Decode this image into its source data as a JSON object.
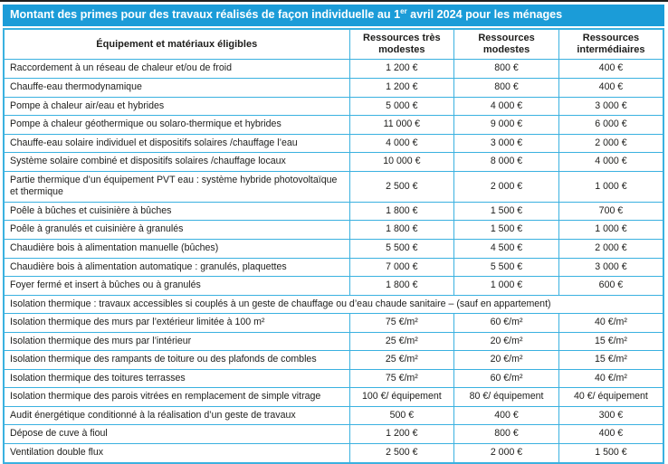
{
  "colors": {
    "title_bar_bg": "#1b9cd8",
    "table_border": "#3ab1e0",
    "text": "#1d1d1b",
    "top_edge_line": "#1f1f1f"
  },
  "title": {
    "prefix": "Montant des primes pour des travaux réalisés de façon individuelle au 1",
    "superscript": "er",
    "suffix": " avril 2024 pour les ménages"
  },
  "table": {
    "columns": [
      "Équipement et matériaux éligibles",
      "Ressources très modestes",
      "Ressources modestes",
      "Ressources intermédiaires"
    ],
    "rows": [
      {
        "label": "Raccordement à un réseau de chaleur et/ou de froid",
        "values": [
          "1 200 €",
          "800 €",
          "400 €"
        ]
      },
      {
        "label": "Chauffe-eau thermodynamique",
        "values": [
          "1 200 €",
          "800 €",
          "400 €"
        ]
      },
      {
        "label": "Pompe à chaleur air/eau et hybrides",
        "values": [
          "5 000 €",
          "4 000 €",
          "3 000 €"
        ]
      },
      {
        "label": "Pompe à chaleur géothermique ou solaro-thermique et hybrides",
        "values": [
          "11 000 €",
          "9 000 €",
          "6 000 €"
        ]
      },
      {
        "label": "Chauffe-eau solaire individuel et dispositifs solaires /chauffage l’eau",
        "values": [
          "4 000 €",
          "3 000 €",
          "2 000 €"
        ]
      },
      {
        "label": "Système solaire combiné et dispositifs solaires /chauffage locaux",
        "values": [
          "10 000 €",
          "8 000 €",
          "4 000 €"
        ]
      },
      {
        "label": "Partie thermique d’un équipement PVT eau : système hybride photovoltaïque et thermique",
        "values": [
          "2 500 €",
          "2 000 €",
          "1 000 €"
        ]
      },
      {
        "label": "Poêle à bûches et cuisinière à bûches",
        "values": [
          "1 800 €",
          "1 500 €",
          "700 €"
        ]
      },
      {
        "label": "Poêle à granulés et cuisinière à granulés",
        "values": [
          "1 800 €",
          "1 500 €",
          "1 000 €"
        ]
      },
      {
        "label": "Chaudière bois à alimentation manuelle (bûches)",
        "values": [
          "5 500 €",
          "4 500 €",
          "2 000 €"
        ]
      },
      {
        "label": "Chaudière bois à alimentation automatique : granulés, plaquettes",
        "values": [
          "7 000 €",
          "5 500 €",
          "3 000 €"
        ]
      },
      {
        "label": "Foyer fermé et insert à bûches ou à granulés",
        "values": [
          "1 800 €",
          "1 000 €",
          "600 €"
        ]
      },
      {
        "span_label": "Isolation thermique : travaux accessibles si couplés à un geste de chauffage ou d’eau chaude sanitaire – (sauf en appartement)"
      },
      {
        "label": "Isolation thermique des murs par l’extérieur limitée à 100 m²",
        "values": [
          "75 €/m²",
          "60 €/m²",
          "40 €/m²"
        ]
      },
      {
        "label": "Isolation thermique des murs par l’intérieur",
        "values": [
          "25 €/m²",
          "20 €/m²",
          "15 €/m²"
        ]
      },
      {
        "label": "Isolation thermique des rampants de toiture ou des plafonds de combles",
        "values": [
          "25 €/m²",
          "20 €/m²",
          "15 €/m²"
        ]
      },
      {
        "label": "Isolation thermique des toitures terrasses",
        "values": [
          "75 €/m²",
          "60 €/m²",
          "40 €/m²"
        ]
      },
      {
        "label": "Isolation thermique des parois vitrées en remplacement de simple vitrage",
        "values": [
          "100 €/ équipement",
          "80 €/ équipement",
          "40 €/ équipement"
        ]
      },
      {
        "label": "Audit énergétique conditionné à la réalisation d’un geste de travaux",
        "values": [
          "500 €",
          "400 €",
          "300 €"
        ]
      },
      {
        "label": "Dépose de cuve à fioul",
        "values": [
          "1 200 €",
          "800 €",
          "400 €"
        ]
      },
      {
        "label": "Ventilation double flux",
        "values": [
          "2 500 €",
          "2 000 €",
          "1 500 €"
        ]
      }
    ]
  }
}
